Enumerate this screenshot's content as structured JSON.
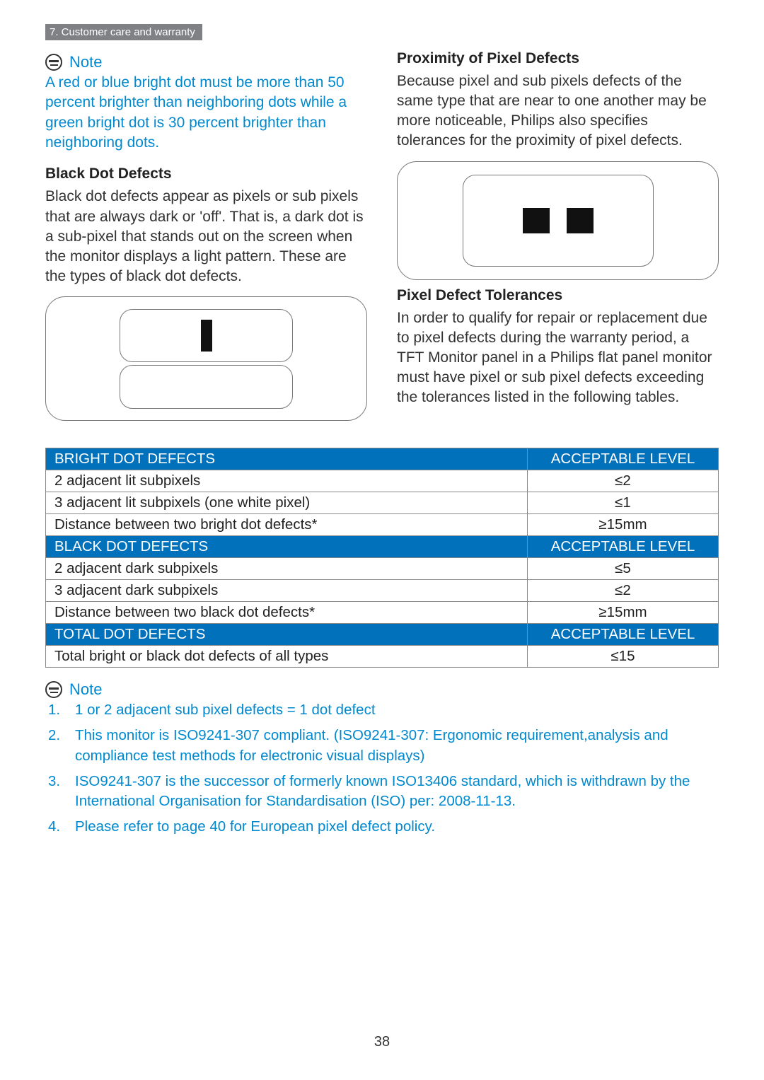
{
  "section_tag": "7. Customer care and warranty",
  "note1": {
    "label": "Note",
    "body": "A red or blue bright dot must be more than 50 percent brighter than neighboring dots while a green bright dot is 30 percent brighter than neighboring dots."
  },
  "black_dot": {
    "heading": "Black Dot Defects",
    "body": "Black dot defects appear as pixels or sub pixels that are always dark or 'off'. That is, a dark dot is a sub-pixel that stands out on the screen when the monitor displays a light pattern. These are the types of black dot defects."
  },
  "proximity": {
    "heading": "Proximity of Pixel Defects",
    "body": "Because pixel and sub pixels defects of the same type that are near to one another may be more noticeable, Philips also specifies tolerances for the proximity of pixel defects."
  },
  "tolerances": {
    "heading": "Pixel Defect Tolerances",
    "body": "In order to qualify for repair or replacement due to pixel defects during the warranty period, a TFT Monitor panel in a Philips flat panel monitor must have pixel or sub pixel defects exceeding the tolerances listed in the following tables."
  },
  "tables": {
    "header_blue_bg": "#0071ba",
    "header_text_color": "#ffffff",
    "border_color": "#888888",
    "col_right_header": "ACCEPTABLE LEVEL",
    "sections": [
      {
        "title": "BRIGHT DOT DEFECTS",
        "rows": [
          {
            "label": "2 adjacent lit subpixels",
            "value": "≤2"
          },
          {
            "label": "3 adjacent lit subpixels (one white pixel)",
            "value": "≤1"
          },
          {
            "label": "Distance between two bright dot defects*",
            "value": "≥15mm"
          }
        ]
      },
      {
        "title": "BLACK DOT DEFECTS",
        "rows": [
          {
            "label": "2 adjacent dark subpixels",
            "value": "≤5"
          },
          {
            "label": "3 adjacent dark subpixels",
            "value": "≤2"
          },
          {
            "label": "Distance between two black dot defects*",
            "value": "≥15mm"
          }
        ]
      },
      {
        "title": "TOTAL DOT DEFECTS",
        "rows": [
          {
            "label": "Total bright or black dot defects of all types",
            "value": "≤15"
          }
        ]
      }
    ]
  },
  "note2": {
    "label": "Note",
    "items": [
      "1 or 2 adjacent sub pixel defects = 1 dot defect",
      "This monitor is ISO9241-307 compliant. (ISO9241-307: Ergonomic requirement,analysis and compliance test methods for electronic visual displays)",
      "ISO9241-307 is the successor of formerly known ISO13406 standard, which is withdrawn by the International Organisation for Standardisation (ISO) per: 2008-11-13.",
      "Please refer to page 40 for European pixel defect policy."
    ]
  },
  "page_number": "38",
  "colors": {
    "accent_blue": "#0089cf",
    "tag_bg": "#808184",
    "text": "#323232"
  }
}
